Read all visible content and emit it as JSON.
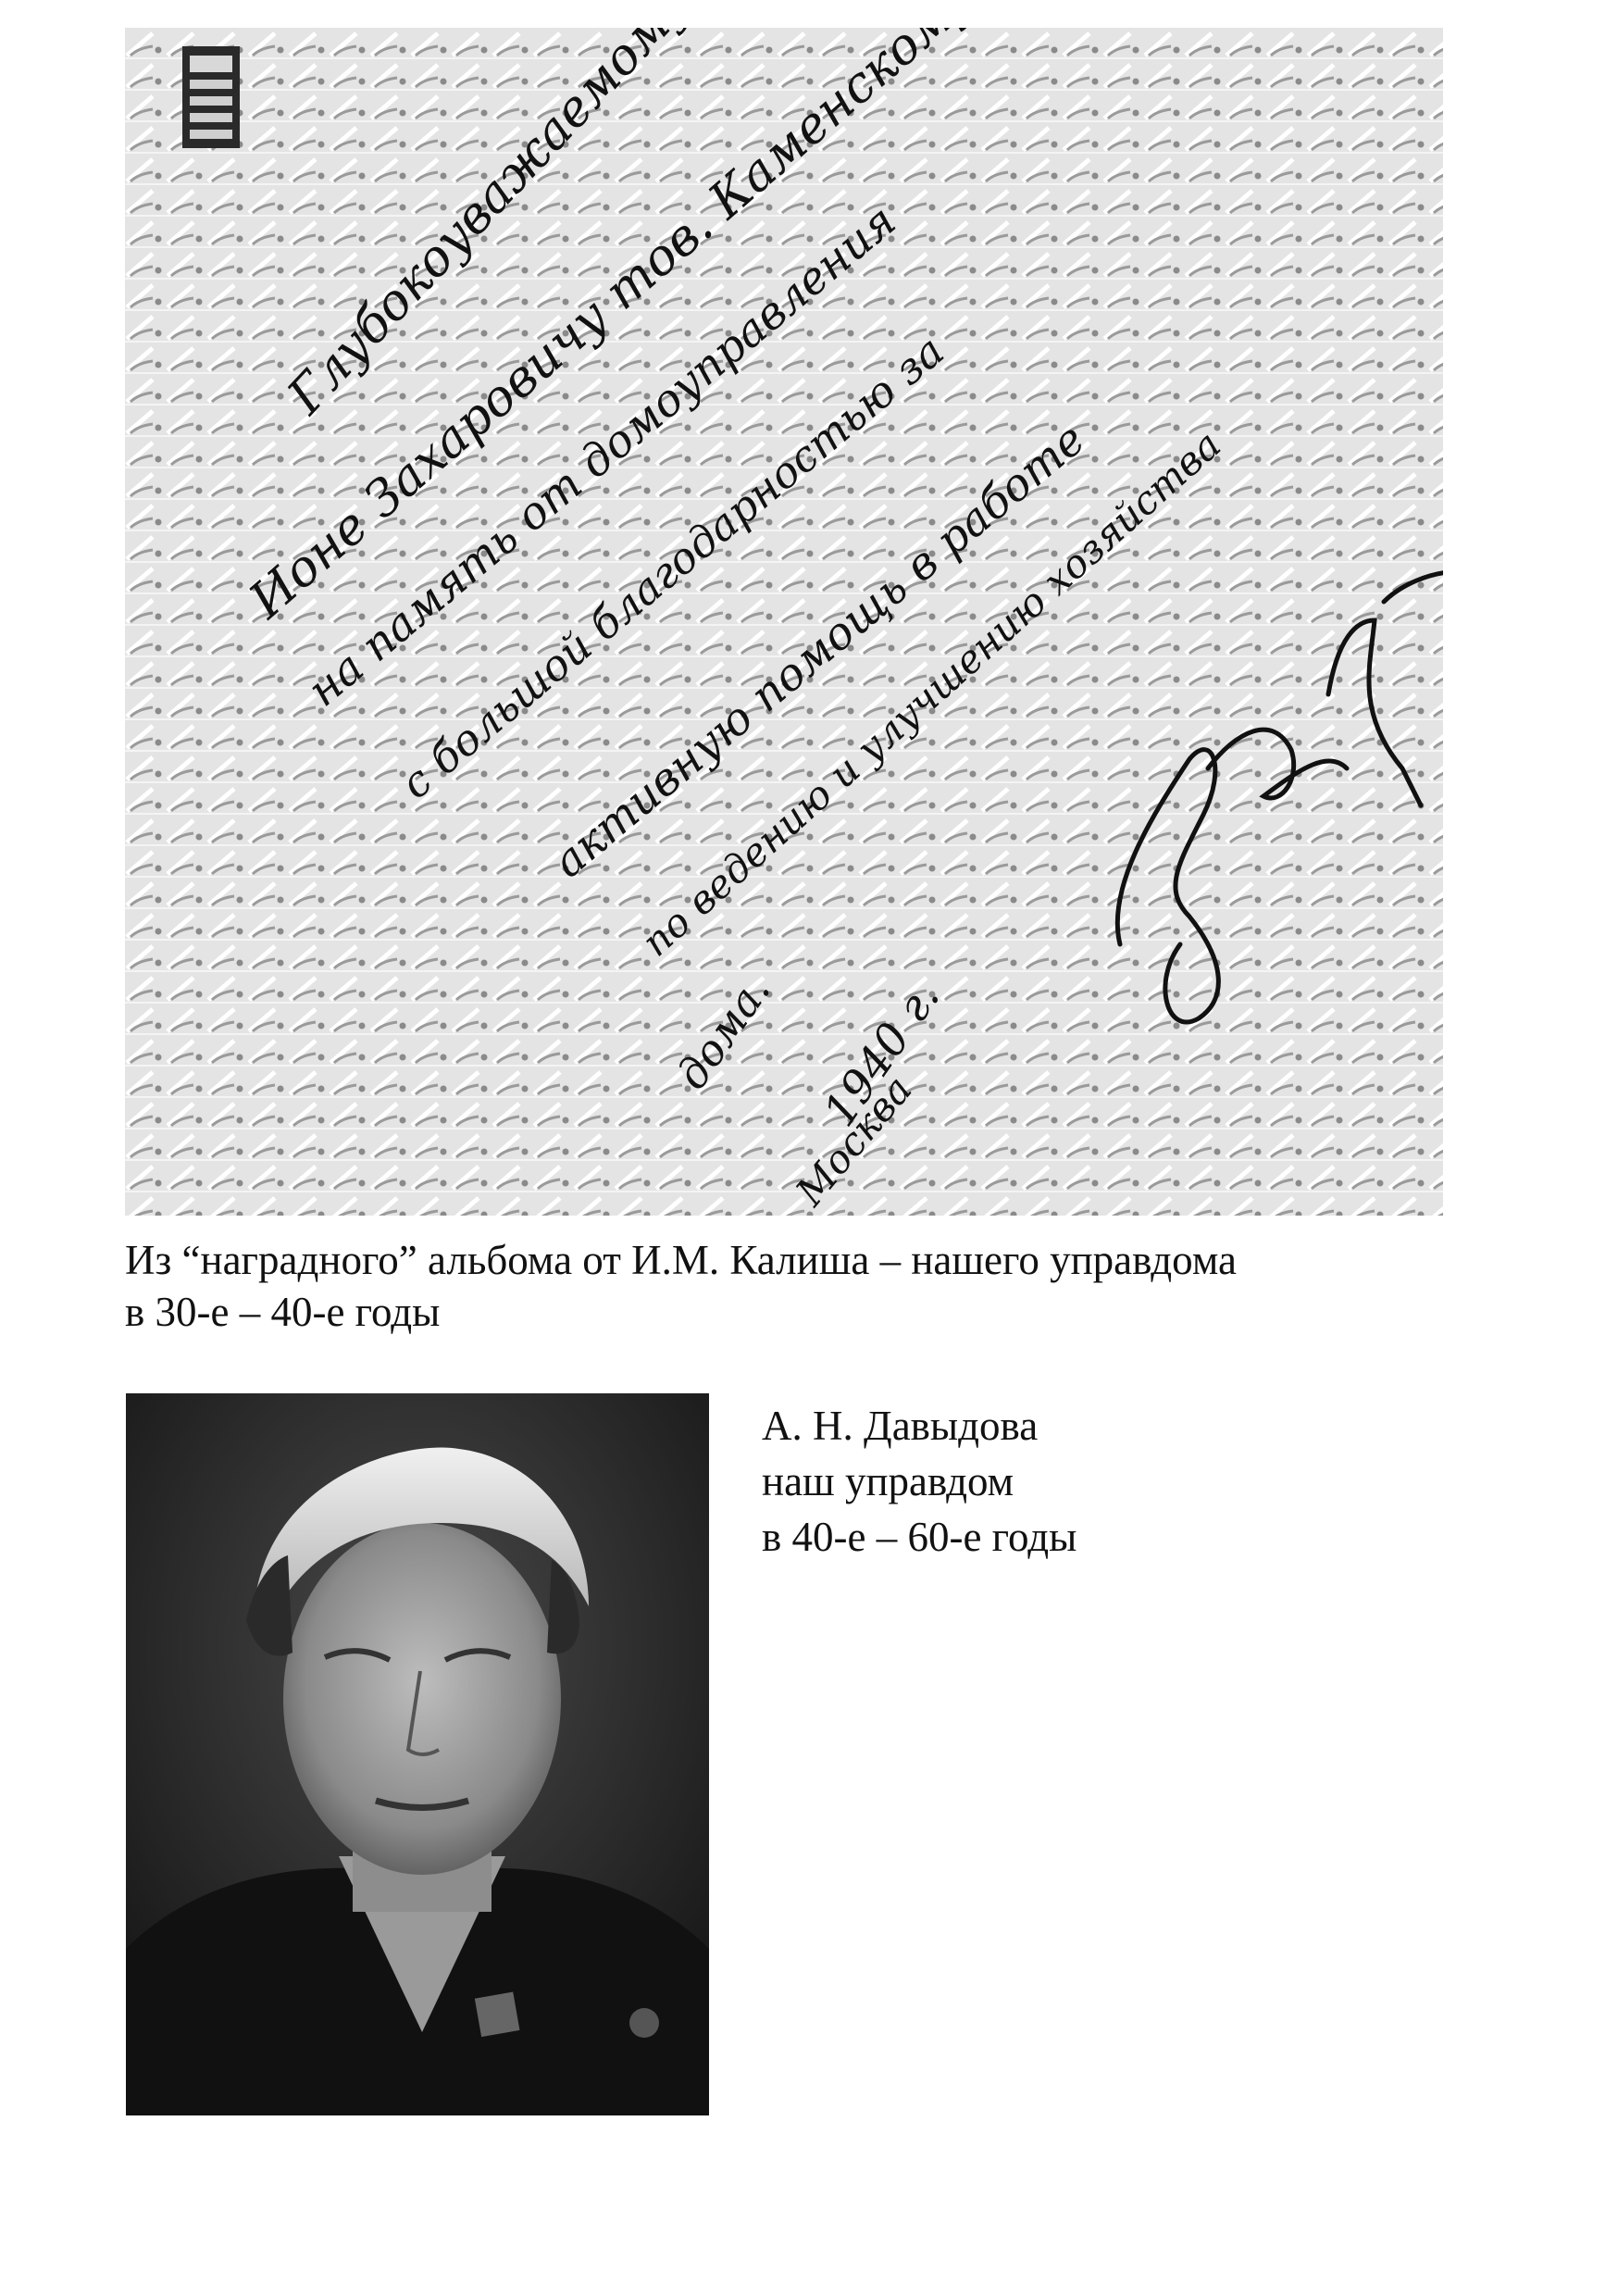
{
  "album_page": {
    "handwriting": [
      "Глубокоуважаемому",
      "Ионе Захаровичу тов. Каменскому",
      "на память от домоуправления",
      "с большой благодарностью за",
      "активную помощь в работе",
      "по ведению и улучшению хозяйства",
      "дома.",
      "1940 г.",
      "Москва"
    ]
  },
  "caption_top": {
    "line1": "Из “наградного” альбома от И.М. Калиша – нашего управдома",
    "line2": "в 30-е – 40-е годы"
  },
  "caption_right": {
    "line1": "А. Н. Давыдова",
    "line2": "наш управдом",
    "line3": "в 40-е – 60-е годы"
  }
}
